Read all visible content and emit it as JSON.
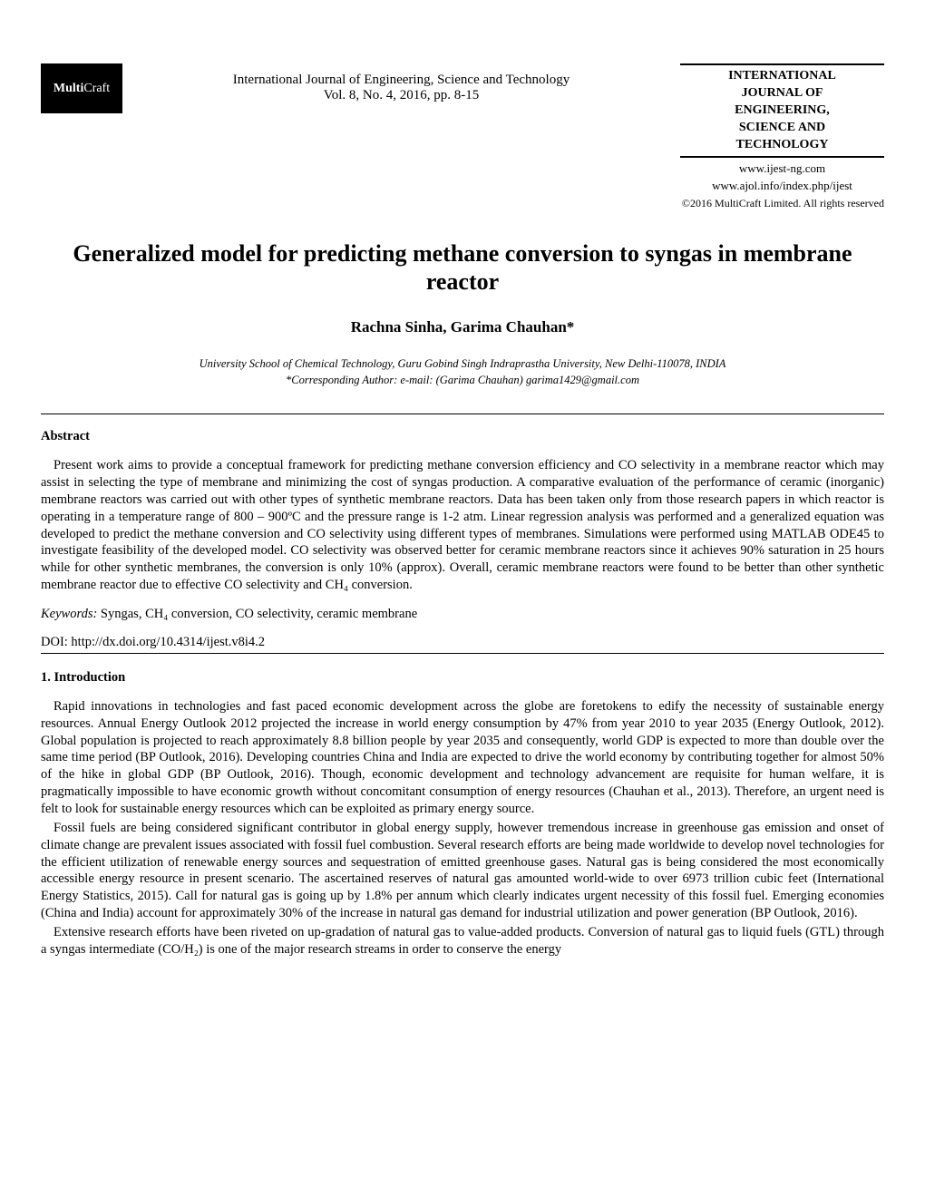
{
  "header": {
    "logo_bold": "Multi",
    "logo_rest": "Craft",
    "journal_line1": "International Journal of Engineering, Science and Technology",
    "journal_line2": "Vol. 8, No. 4, 2016, pp. 8-15",
    "journal_box_l1": "INTERNATIONAL",
    "journal_box_l2": "JOURNAL OF",
    "journal_box_l3": "ENGINEERING,",
    "journal_box_l4": "SCIENCE AND",
    "journal_box_l5": "TECHNOLOGY",
    "url1": "www.ijest-ng.com",
    "url2": "www.ajol.info/index.php/ijest",
    "copyright": "©2016 MultiCraft Limited. All rights reserved"
  },
  "title": "Generalized model for predicting methane conversion to syngas in membrane reactor",
  "authors": "Rachna Sinha, Garima Chauhan*",
  "affiliation_l1": "University School of Chemical Technology, Guru Gobind Singh Indraprastha University, New Delhi-110078, INDIA",
  "affiliation_l2": "*Corresponding Author: e-mail: (Garima Chauhan) garima1429@gmail.com",
  "abstract_heading": "Abstract",
  "abstract_text": "Present work aims to provide a conceptual framework for predicting methane conversion efficiency and CO selectivity in a membrane reactor which may assist in selecting the type of membrane and minimizing the cost of syngas production. A comparative evaluation of the performance of ceramic (inorganic) membrane reactors was carried out with other types of synthetic membrane reactors. Data has been taken only from those research papers in which reactor is operating in a temperature range of 800 – 900ºC and the pressure range is 1-2 atm. Linear regression analysis was performed and a generalized equation was developed to predict the methane conversion and CO selectivity using different types of membranes. Simulations were performed using MATLAB ODE45 to investigate feasibility of the developed model. CO selectivity was observed better for ceramic membrane reactors since it achieves 90% saturation in 25 hours while for other synthetic membranes, the conversion is only 10% (approx). Overall, ceramic membrane reactors were found to be better than other synthetic membrane reactor due to effective CO selectivity and CH₄ conversion.",
  "keywords_label": "Keywords:",
  "keywords_text": " Syngas, CH₄ conversion, CO selectivity, ceramic membrane",
  "doi": "DOI: http://dx.doi.org/10.4314/ijest.v8i4.2",
  "section1_heading": "1. Introduction",
  "intro_p1": "Rapid innovations in technologies and fast paced economic development across the globe are foretokens to edify the necessity of sustainable energy resources. Annual Energy Outlook 2012 projected the increase in world energy consumption by 47% from year 2010 to year 2035 (Energy Outlook, 2012). Global population is projected to reach approximately 8.8 billion people by year 2035 and consequently, world GDP is expected to more than double over the same time period (BP Outlook, 2016). Developing countries China and India are expected to drive the world economy by contributing together for almost 50% of the hike in global GDP (BP Outlook, 2016). Though, economic development and technology advancement are requisite for human welfare, it is pragmatically impossible to have economic growth without concomitant consumption of energy resources (Chauhan et al., 2013). Therefore, an urgent need is felt to look for sustainable energy resources which can be exploited as primary energy source.",
  "intro_p2": "Fossil fuels are being considered significant contributor in global energy supply, however tremendous increase in greenhouse gas emission and onset of climate change are prevalent issues associated with fossil fuel combustion. Several research efforts are being made worldwide to develop novel technologies for the efficient utilization of renewable energy sources and sequestration of emitted greenhouse gases. Natural gas is being considered the most economically accessible energy resource in present scenario. The ascertained reserves of natural gas amounted world-wide to over 6973 trillion cubic feet (International Energy Statistics, 2015). Call for natural gas is going up by 1.8% per annum which clearly indicates urgent necessity of this fossil fuel. Emerging economies (China and India) account for approximately 30% of the increase in natural gas demand for industrial utilization and power generation (BP Outlook, 2016).",
  "intro_p3": "Extensive research efforts have been riveted on up-gradation of natural gas to value-added products. Conversion of natural gas to liquid fuels (GTL) through a syngas intermediate (CO/H₂) is one of the major research streams in order to conserve the energy"
}
